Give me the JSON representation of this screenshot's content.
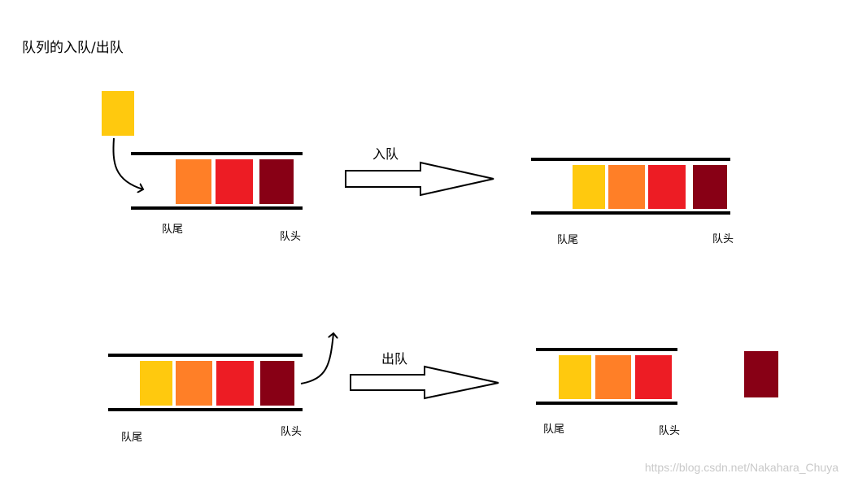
{
  "title": "队列的入队/出队",
  "colors": {
    "yellow": "#ffc90e",
    "orange": "#ff7f27",
    "red": "#ed1c24",
    "darkred": "#880015",
    "line": "#000000"
  },
  "enqueue": {
    "arrow_label": "入队",
    "before": {
      "tail_label": "队尾",
      "head_label": "队头"
    },
    "after": {
      "tail_label": "队尾",
      "head_label": "队头"
    }
  },
  "dequeue": {
    "arrow_label": "出队",
    "before": {
      "tail_label": "队尾",
      "head_label": "队头"
    },
    "after": {
      "tail_label": "队尾",
      "head_label": "队头"
    }
  },
  "watermark": "https://blog.csdn.net/Nakahara_Chuya"
}
